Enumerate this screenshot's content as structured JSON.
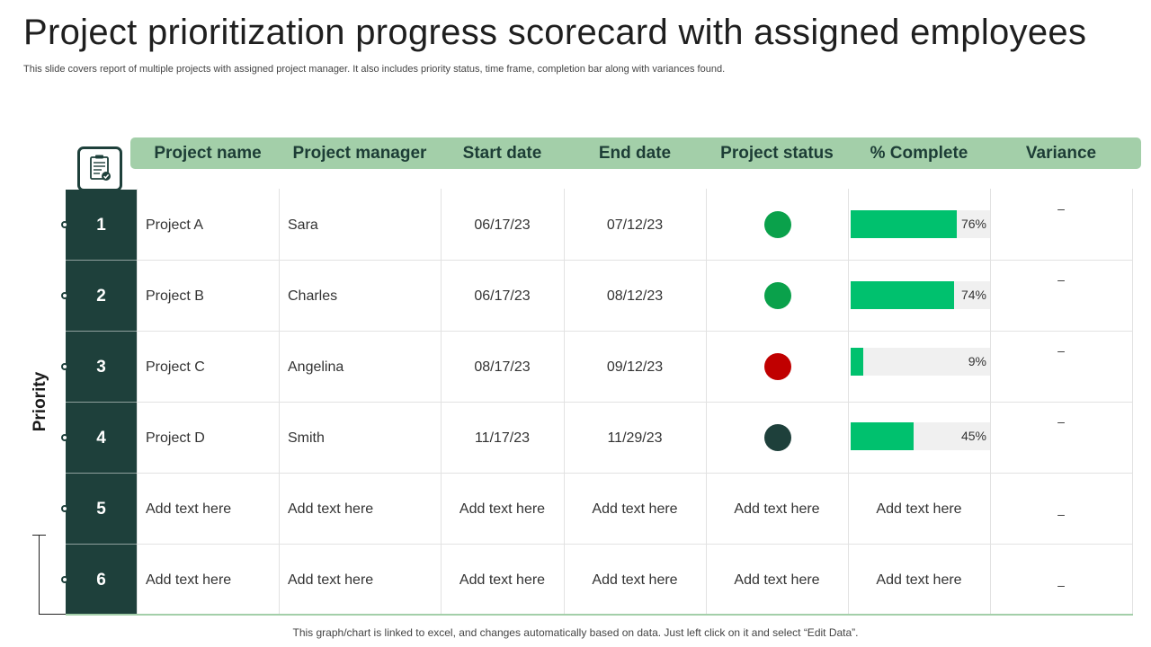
{
  "slide": {
    "title": "Project prioritization progress scorecard with assigned employees",
    "subtitle": "This slide covers report of multiple projects with assigned project manager. It also includes priority status, time frame, completion bar along with variances found.",
    "priority_label": "Priority",
    "footnote": "This graph/chart is linked to excel,  and changes automatically based on data. Just left click on it and select “Edit Data”."
  },
  "colors": {
    "header_bg": "#a3cfa9",
    "dark_teal": "#1e403b",
    "bar_green": "#00c16e",
    "status_green": "#0aa14b",
    "status_red": "#c00000",
    "status_dark": "#1e403b"
  },
  "table": {
    "columns": [
      "Project name",
      "Project manager",
      "Start date",
      "End date",
      "Project status",
      "% Complete",
      "Variance"
    ],
    "rows": [
      {
        "priority": "1",
        "name": "Project A",
        "manager": "Sara",
        "start": "06/17/23",
        "end": "07/12/23",
        "status": "green",
        "complete": 76,
        "complete_label": "76%",
        "variance": "–"
      },
      {
        "priority": "2",
        "name": "Project B",
        "manager": "Charles",
        "start": "06/17/23",
        "end": "08/12/23",
        "status": "green",
        "complete": 74,
        "complete_label": "74%",
        "variance": "–"
      },
      {
        "priority": "3",
        "name": "Project C",
        "manager": "Angelina",
        "start": "08/17/23",
        "end": "09/12/23",
        "status": "red",
        "complete": 9,
        "complete_label": "9%",
        "variance": "–"
      },
      {
        "priority": "4",
        "name": "Project D",
        "manager": "Smith",
        "start": "11/17/23",
        "end": "11/29/23",
        "status": "dark",
        "complete": 45,
        "complete_label": "45%",
        "variance": "–"
      },
      {
        "priority": "5",
        "name": "Add text here",
        "manager": "Add text here",
        "start": "Add text here",
        "end": "Add text here",
        "status_text": "Add text here",
        "complete_text": "Add text here",
        "variance": "–"
      },
      {
        "priority": "6",
        "name": "Add text here",
        "manager": "Add text here",
        "start": "Add text here",
        "end": "Add text here",
        "status_text": "Add text here",
        "complete_text": "Add text here",
        "variance": "–"
      }
    ]
  },
  "icons": {
    "header_icon": "clipboard-check-icon"
  }
}
